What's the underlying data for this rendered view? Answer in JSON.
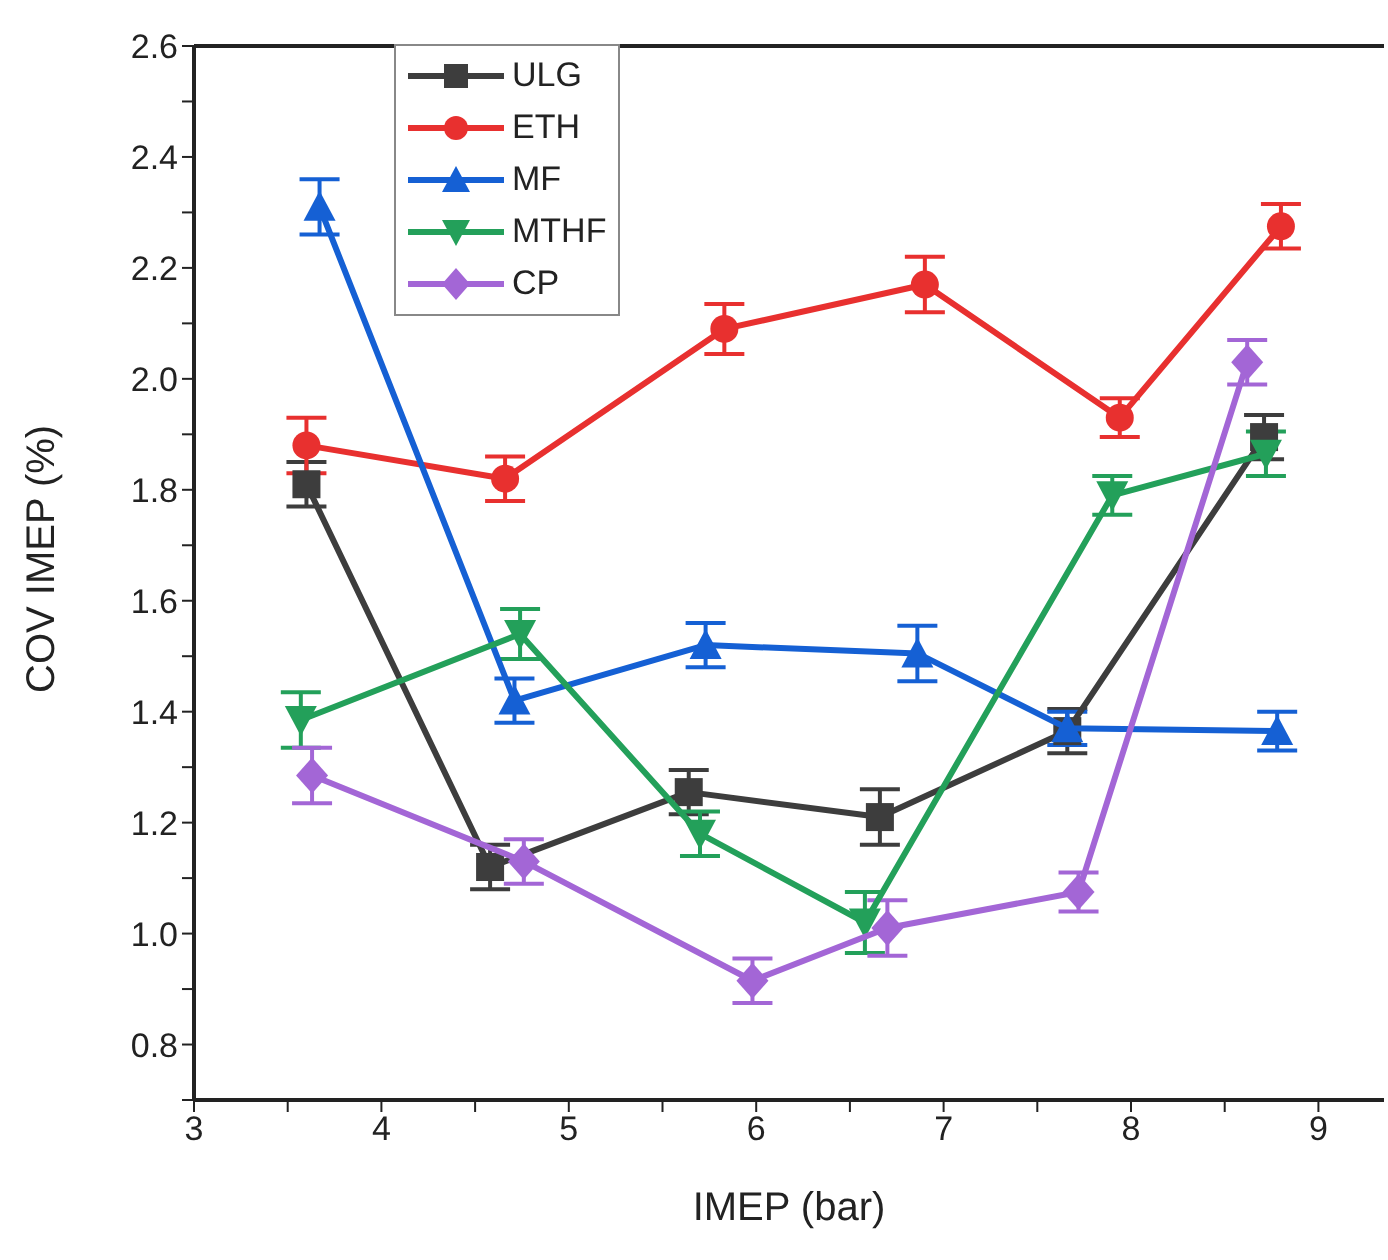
{
  "chart_data": {
    "type": "line",
    "xlabel": "IMEP (bar)",
    "ylabel": "COV IMEP (%)",
    "xlim": [
      3,
      9.35
    ],
    "ylim": [
      0.7,
      2.6
    ],
    "xticks": [
      3,
      {
        "value": 3.5,
        "label": null
      },
      4,
      {
        "value": 4.5,
        "label": null
      },
      5,
      {
        "value": 5.5,
        "label": null
      },
      6,
      {
        "value": 6.5,
        "label": null
      },
      7,
      {
        "value": 7.5,
        "label": null
      },
      8,
      {
        "value": 8.5,
        "label": null
      },
      9
    ],
    "yticks": [
      {
        "value": 0.7,
        "label": null
      },
      0.8,
      {
        "value": 0.9,
        "label": null
      },
      {
        "value": 1,
        "label": "1.0"
      },
      {
        "value": 1.1,
        "label": null
      },
      1.2,
      {
        "value": 1.3,
        "label": null
      },
      1.4,
      {
        "value": 1.5,
        "label": null
      },
      1.6,
      {
        "value": 1.7,
        "label": null
      },
      1.8,
      {
        "value": 1.9,
        "label": null
      },
      {
        "value": 2,
        "label": "2.0"
      },
      {
        "value": 2.1,
        "label": null
      },
      2.2,
      {
        "value": 2.3,
        "label": null
      },
      2.4,
      {
        "value": 2.5,
        "label": null
      },
      2.6
    ],
    "grid": false,
    "legend": "top left",
    "line_style": "solid",
    "series": [
      {
        "name": "ULG",
        "color": "#3d3d3d",
        "marker": "square",
        "x": [
          3.6,
          4.58,
          5.64,
          6.66,
          7.66,
          8.71
        ],
        "values": [
          1.81,
          1.12,
          1.255,
          1.21,
          1.365,
          1.895
        ],
        "errors": [
          0.04,
          0.04,
          0.04,
          0.05,
          0.04,
          0.04
        ]
      },
      {
        "name": "ETH",
        "color": "#e8302f",
        "marker": "circle",
        "x": [
          3.6,
          4.66,
          5.83,
          6.9,
          7.94,
          8.8
        ],
        "values": [
          1.88,
          1.82,
          2.09,
          2.17,
          1.93,
          2.275
        ],
        "errors": [
          0.05,
          0.04,
          0.045,
          0.05,
          0.035,
          0.04
        ]
      },
      {
        "name": "MF",
        "color": "#1560d4",
        "marker": "triangle",
        "x": [
          3.67,
          4.71,
          5.73,
          6.86,
          7.66,
          8.78
        ],
        "values": [
          2.31,
          1.42,
          1.52,
          1.505,
          1.37,
          1.365
        ],
        "errors": [
          0.05,
          0.04,
          0.04,
          0.05,
          0.03,
          0.035
        ]
      },
      {
        "name": "MTHF",
        "color": "#23a05a",
        "marker": "triangle-down",
        "x": [
          3.57,
          4.74,
          5.7,
          6.58,
          7.9,
          8.72
        ],
        "values": [
          1.385,
          1.54,
          1.18,
          1.02,
          1.79,
          1.865
        ],
        "errors": [
          0.05,
          0.045,
          0.04,
          0.055,
          0.035,
          0.04
        ]
      },
      {
        "name": "CP",
        "color": "#a366d6",
        "marker": "diamond",
        "x": [
          3.63,
          4.76,
          5.98,
          6.7,
          7.72,
          8.62
        ],
        "values": [
          1.285,
          1.13,
          0.915,
          1.01,
          1.075,
          2.03
        ],
        "errors": [
          0.05,
          0.04,
          0.04,
          0.05,
          0.035,
          0.04
        ]
      }
    ]
  }
}
